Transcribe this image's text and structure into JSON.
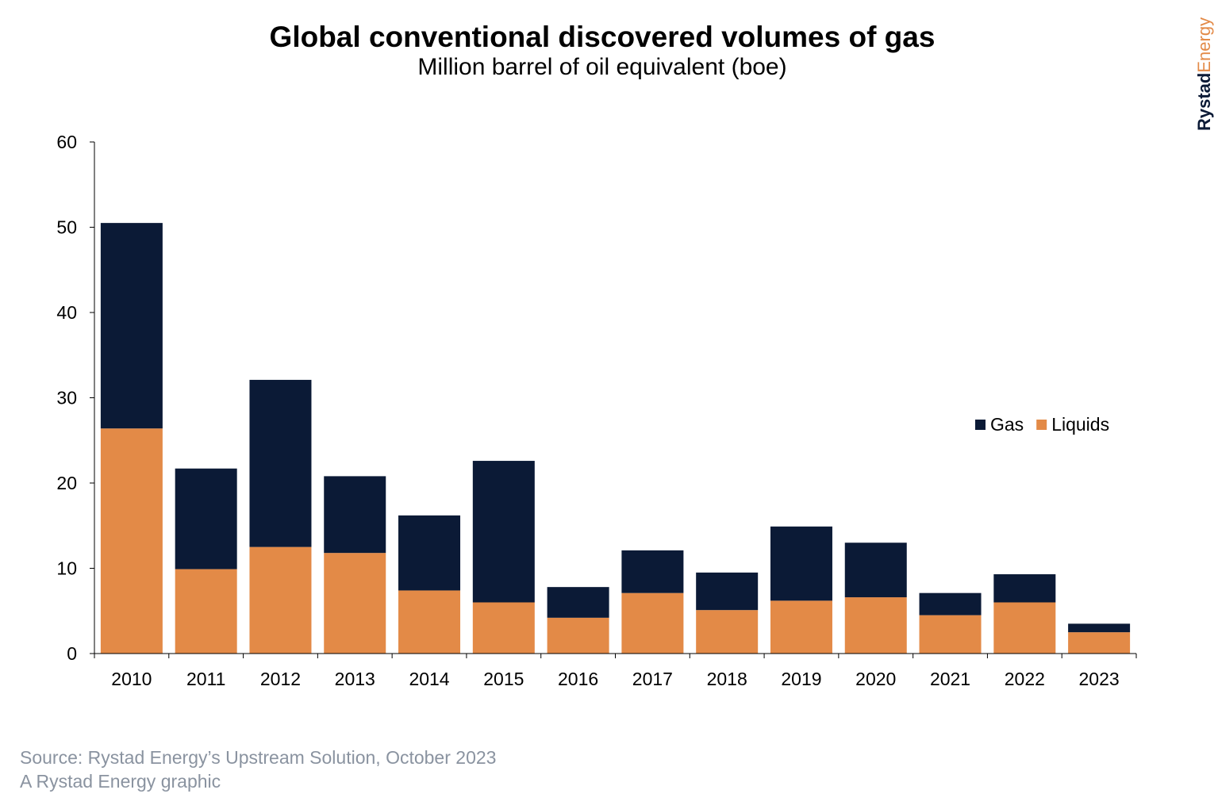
{
  "chart_data": {
    "type": "bar",
    "stacked": true,
    "title": "Global conventional discovered volumes of gas",
    "subtitle": "Million barrel of oil equivalent (boe)",
    "categories": [
      "2010",
      "2011",
      "2012",
      "2013",
      "2014",
      "2015",
      "2016",
      "2017",
      "2018",
      "2019",
      "2020",
      "2021",
      "2022",
      "2023"
    ],
    "series": [
      {
        "name": "Liquids",
        "color": "#e38a47",
        "values": [
          26.4,
          9.9,
          12.5,
          11.8,
          7.4,
          6.0,
          4.2,
          7.1,
          5.1,
          6.2,
          6.6,
          4.5,
          6.0,
          2.5
        ]
      },
      {
        "name": "Gas",
        "color": "#0b1a36",
        "values": [
          24.1,
          11.8,
          19.6,
          9.0,
          8.8,
          16.6,
          3.6,
          5.0,
          4.4,
          8.7,
          6.4,
          2.6,
          3.3,
          1.0
        ]
      }
    ],
    "legend_order": [
      "Gas",
      "Liquids"
    ],
    "yticks": [
      0,
      10,
      20,
      30,
      40,
      50,
      60
    ],
    "ylim": [
      0,
      60
    ],
    "grid": false,
    "legend_placement": "right"
  },
  "footer": {
    "source": "Source: Rystad Energy’s Upstream Solution, October 2023",
    "credit": "A Rystad Energy graphic"
  },
  "logo": {
    "part1": "Rystad",
    "part2": "Energy"
  }
}
